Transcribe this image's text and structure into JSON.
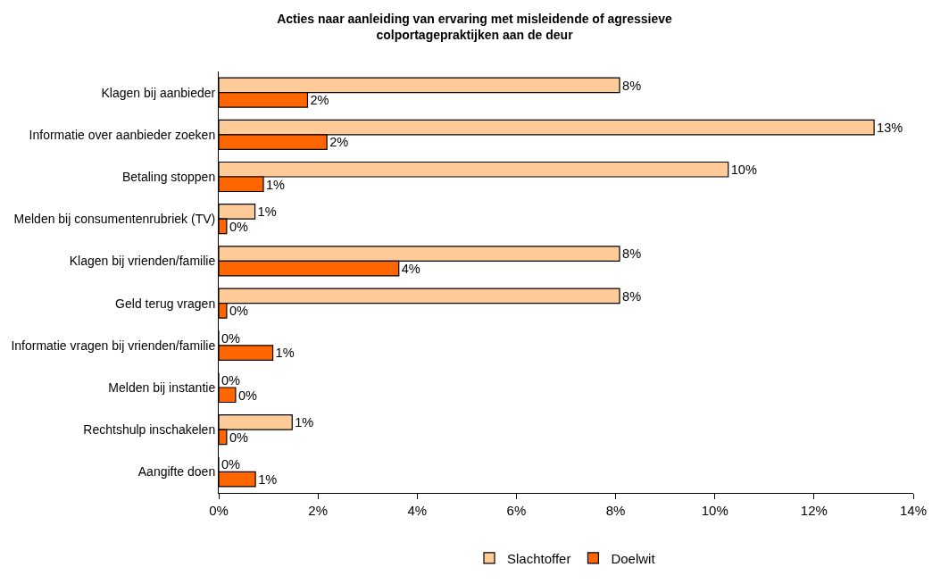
{
  "chart_data": {
    "type": "bar",
    "orientation": "horizontal",
    "title": "Acties naar aanleiding van ervaring met misleidende of agressieve colportagepraktijken aan de deur",
    "categories": [
      "Klagen bij aanbieder",
      "Informatie over aanbieder zoeken",
      "Betaling stoppen",
      "Melden bij consumentenrubriek (TV)",
      "Klagen bij vrienden/familie",
      "Geld terug vragen",
      "Informatie vragen bij vrienden/familie",
      "Melden bij instantie",
      "Rechtshulp inschakelen",
      "Aangifte doen"
    ],
    "series": [
      {
        "name": "Slachtoffer",
        "color": "#ffcc99",
        "values": [
          8.08,
          13.21,
          10.27,
          0.73,
          8.08,
          8.08,
          0,
          0,
          1.48,
          0
        ],
        "value_labels": [
          "8%",
          "13%",
          "10%",
          "1%",
          "8%",
          "8%",
          "0%",
          "0%",
          "1%",
          "0%"
        ]
      },
      {
        "name": "Doelwit",
        "color": "#ff6600",
        "values": [
          1.79,
          2.18,
          0.9,
          0.16,
          3.63,
          0.16,
          1.09,
          0.34,
          0.16,
          0.74
        ],
        "value_labels": [
          "2%",
          "2%",
          "1%",
          "0%",
          "4%",
          "0%",
          "1%",
          "0%",
          "0%",
          "1%"
        ]
      }
    ],
    "xlim": [
      0,
      14
    ],
    "xticks": [
      {
        "value": 0,
        "label": "0%"
      },
      {
        "value": 2,
        "label": "2%"
      },
      {
        "value": 4,
        "label": "4%"
      },
      {
        "value": 6,
        "label": "6%"
      },
      {
        "value": 8,
        "label": "8%"
      },
      {
        "value": 10,
        "label": "10%"
      },
      {
        "value": 12,
        "label": "12%"
      },
      {
        "value": 14,
        "label": "14%"
      }
    ],
    "grid": false,
    "legend": "bottom"
  }
}
